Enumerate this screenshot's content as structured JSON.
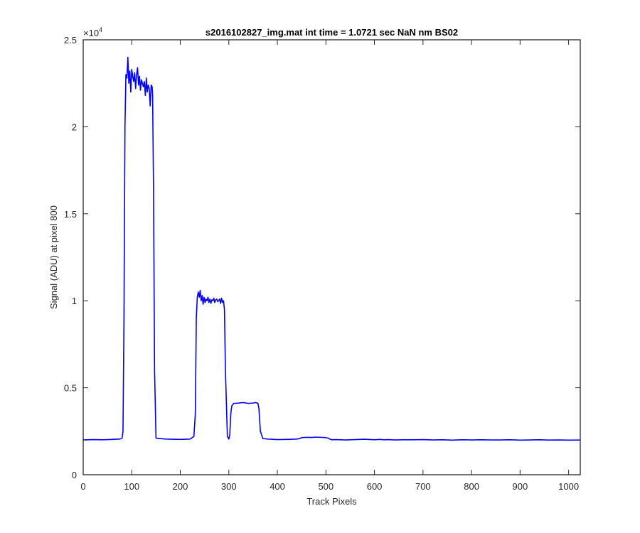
{
  "chart_data": {
    "type": "line",
    "title": "s2016102827_img.mat int time = 1.0721 sec  NaN nm BS02",
    "xlabel": "Track Pixels",
    "ylabel": "Signal (ADU) at pixel 800",
    "exponent_label": "×10",
    "exponent_power": "4",
    "xlim": [
      0,
      1024
    ],
    "ylim": [
      0,
      25000
    ],
    "xticks": [
      0,
      100,
      200,
      300,
      400,
      500,
      600,
      700,
      800,
      900,
      1000
    ],
    "yticks": [
      0,
      5000,
      10000,
      15000,
      20000,
      25000
    ],
    "ytick_labels": [
      "0",
      "0.5",
      "1",
      "1.5",
      "2",
      "2.5"
    ],
    "grid": false,
    "box": true,
    "line_color": "#0000ff",
    "axis_color": "#262626",
    "series": [
      {
        "x": [
          0,
          20,
          40,
          60,
          75,
          80,
          82,
          84,
          86,
          88,
          90,
          92,
          94,
          96,
          98,
          100,
          102,
          104,
          106,
          108,
          110,
          112,
          114,
          116,
          118,
          120,
          122,
          124,
          126,
          128,
          130,
          132,
          134,
          136,
          138,
          140,
          142,
          143,
          145,
          147,
          150,
          170,
          200,
          220,
          228,
          231,
          233,
          235,
          237,
          239,
          241,
          243,
          245,
          247,
          249,
          251,
          253,
          255,
          257,
          259,
          261,
          263,
          265,
          267,
          269,
          271,
          273,
          275,
          277,
          279,
          281,
          283,
          285,
          287,
          289,
          291,
          293,
          297,
          300,
          302,
          304,
          306,
          310,
          320,
          330,
          340,
          350,
          355,
          360,
          362,
          365,
          370,
          380,
          400,
          420,
          440,
          446,
          450,
          460,
          470,
          480,
          490,
          500,
          505,
          508,
          512,
          520,
          540,
          560,
          580,
          600,
          610,
          620,
          630,
          640,
          660,
          680,
          700,
          720,
          740,
          760,
          780,
          800,
          820,
          840,
          860,
          880,
          900,
          920,
          940,
          960,
          980,
          1000,
          1024
        ],
        "y": [
          2000,
          2020,
          2010,
          2030,
          2050,
          2100,
          2500,
          9000,
          20000,
          23000,
          22800,
          24000,
          22500,
          23200,
          22000,
          23300,
          22900,
          22600,
          23100,
          22200,
          23000,
          23400,
          22400,
          22900,
          22100,
          22700,
          22500,
          22300,
          22600,
          21800,
          22800,
          22000,
          22400,
          22200,
          21200,
          22400,
          22300,
          21800,
          16000,
          6000,
          2100,
          2050,
          2030,
          2050,
          2200,
          3500,
          9000,
          10200,
          10500,
          10200,
          10600,
          10000,
          10300,
          9800,
          10200,
          9900,
          10100,
          10000,
          10200,
          9900,
          10100,
          9850,
          10050,
          10000,
          10150,
          9900,
          10050,
          10100,
          9950,
          10000,
          10100,
          9850,
          10150,
          9900,
          10000,
          9500,
          6000,
          2200,
          2050,
          2300,
          3500,
          3950,
          4100,
          4120,
          4150,
          4100,
          4120,
          4150,
          4100,
          3800,
          2500,
          2080,
          2050,
          2020,
          2030,
          2050,
          2080,
          2130,
          2150,
          2140,
          2160,
          2150,
          2130,
          2100,
          2050,
          2010,
          2020,
          2000,
          2020,
          2040,
          2010,
          2030,
          2010,
          2020,
          2000,
          2010,
          2010,
          2020,
          2000,
          2010,
          1990,
          2010,
          2000,
          2010,
          2000,
          2000,
          2010,
          1990,
          2000,
          2010,
          1995,
          2000,
          1990,
          1995
        ]
      }
    ]
  }
}
